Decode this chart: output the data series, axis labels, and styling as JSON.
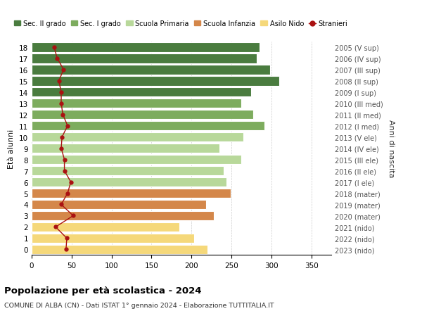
{
  "ages": [
    18,
    17,
    16,
    15,
    14,
    13,
    12,
    11,
    10,
    9,
    8,
    7,
    6,
    5,
    4,
    3,
    2,
    1,
    0
  ],
  "right_labels": [
    "2005 (V sup)",
    "2006 (IV sup)",
    "2007 (III sup)",
    "2008 (II sup)",
    "2009 (I sup)",
    "2010 (III med)",
    "2011 (II med)",
    "2012 (I med)",
    "2013 (V ele)",
    "2014 (IV ele)",
    "2015 (III ele)",
    "2016 (II ele)",
    "2017 (I ele)",
    "2018 (mater)",
    "2019 (mater)",
    "2020 (mater)",
    "2021 (nido)",
    "2022 (nido)",
    "2023 (nido)"
  ],
  "bar_values": [
    285,
    282,
    298,
    310,
    275,
    262,
    277,
    291,
    265,
    235,
    262,
    240,
    244,
    249,
    218,
    228,
    185,
    203,
    220
  ],
  "bar_colors": [
    "#4a7c3f",
    "#4a7c3f",
    "#4a7c3f",
    "#4a7c3f",
    "#4a7c3f",
    "#7dac5e",
    "#7dac5e",
    "#7dac5e",
    "#b8d89a",
    "#b8d89a",
    "#b8d89a",
    "#b8d89a",
    "#b8d89a",
    "#d4874a",
    "#d4874a",
    "#d4874a",
    "#f5d87a",
    "#f5d87a",
    "#f5d87a"
  ],
  "stranieri_values": [
    28,
    32,
    40,
    34,
    37,
    37,
    39,
    45,
    38,
    37,
    41,
    41,
    49,
    45,
    37,
    52,
    30,
    44,
    43
  ],
  "stranieri_color": "#aa1111",
  "title": "Popolazione per età scolastica - 2024",
  "subtitle": "COMUNE DI ALBA (CN) - Dati ISTAT 1° gennaio 2024 - Elaborazione TUTTITALIA.IT",
  "ylabel": "Età alunni",
  "right_ylabel": "Anni di nascita",
  "xlim": [
    0,
    375
  ],
  "xticks": [
    0,
    50,
    100,
    150,
    200,
    250,
    300,
    350
  ],
  "legend_items": [
    {
      "label": "Sec. II grado",
      "color": "#4a7c3f"
    },
    {
      "label": "Sec. I grado",
      "color": "#7dac5e"
    },
    {
      "label": "Scuola Primaria",
      "color": "#b8d89a"
    },
    {
      "label": "Scuola Infanzia",
      "color": "#d4874a"
    },
    {
      "label": "Asilo Nido",
      "color": "#f5d87a"
    },
    {
      "label": "Stranieri",
      "color": "#aa1111",
      "marker": "o"
    }
  ],
  "background_color": "#ffffff",
  "grid_color": "#cccccc"
}
